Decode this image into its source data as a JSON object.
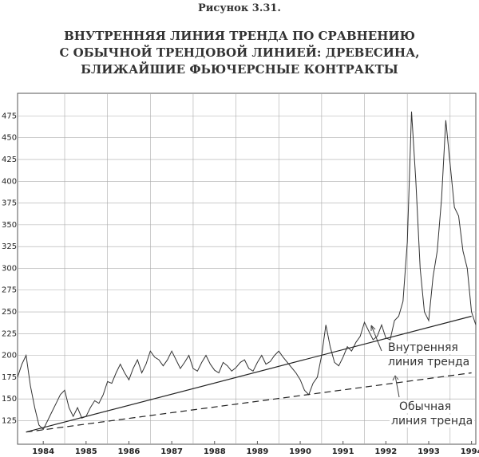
{
  "chart_data": {
    "type": "line",
    "figure_label": "Рисунок 3.31.",
    "title": [
      "ВНУТРЕННЯЯ ЛИНИЯ ТРЕНДА ПО СРАВНЕНИЮ",
      "С ОБЫЧНОЙ ТРЕНДОВОЙ ЛИНИЕЙ: ДРЕВЕСИНА,",
      "БЛИЖАЙШИЕ ФЬЮЧЕРСНЫЕ КОНТРАКТЫ"
    ],
    "x": [
      1983.9,
      1984.0,
      1984.1,
      1984.2,
      1984.3,
      1984.4,
      1984.5,
      1984.6,
      1984.7,
      1984.8,
      1984.9,
      1985.0,
      1985.1,
      1985.2,
      1985.3,
      1985.4,
      1985.5,
      1985.6,
      1985.7,
      1985.8,
      1985.9,
      1986.0,
      1986.1,
      1986.2,
      1986.3,
      1986.4,
      1986.5,
      1986.6,
      1986.7,
      1986.8,
      1986.9,
      1987.0,
      1987.1,
      1987.2,
      1987.3,
      1987.4,
      1987.5,
      1987.6,
      1987.7,
      1987.8,
      1987.9,
      1988.0,
      1988.1,
      1988.2,
      1988.3,
      1988.4,
      1988.5,
      1988.6,
      1988.7,
      1988.8,
      1988.9,
      1989.0,
      1989.1,
      1989.2,
      1989.3,
      1989.4,
      1989.5,
      1989.6,
      1989.7,
      1989.8,
      1989.9,
      1990.0,
      1990.1,
      1990.2,
      1990.3,
      1990.4,
      1990.5,
      1990.6,
      1990.7,
      1990.8,
      1990.9,
      1991.0,
      1991.1,
      1991.2,
      1991.3,
      1991.4,
      1991.5,
      1991.6,
      1991.7,
      1991.8,
      1991.9,
      1992.0,
      1992.1,
      1992.2,
      1992.3,
      1992.4,
      1992.5,
      1992.6,
      1992.7,
      1992.8,
      1992.9,
      1993.0,
      1993.1,
      1993.2,
      1993.3,
      1993.4,
      1993.5,
      1993.6,
      1993.7,
      1993.8,
      1993.9,
      1994.0,
      1994.1,
      1994.2,
      1994.3,
      1994.4,
      1994.5,
      1994.6
    ],
    "series": [
      {
        "color": "#333333",
        "values": [
          175,
          190,
          200,
          165,
          140,
          120,
          115,
          125,
          135,
          145,
          155,
          160,
          140,
          130,
          140,
          128,
          130,
          140,
          148,
          145,
          155,
          170,
          168,
          180,
          190,
          180,
          172,
          185,
          195,
          180,
          190,
          205,
          198,
          195,
          188,
          195,
          205,
          195,
          185,
          192,
          200,
          185,
          182,
          192,
          200,
          190,
          183,
          180,
          192,
          188,
          182,
          186,
          192,
          195,
          185,
          182,
          192,
          200,
          190,
          193,
          200,
          205,
          198,
          192,
          186,
          180,
          172,
          160,
          155,
          168,
          175,
          200,
          235,
          210,
          192,
          188,
          198,
          210,
          205,
          215,
          222,
          238,
          228,
          218,
          222,
          235,
          220,
          218,
          240,
          245,
          262,
          330,
          480,
          400,
          300,
          250,
          240,
          290,
          320,
          380,
          470,
          420,
          370,
          360,
          320,
          300,
          250,
          235
        ]
      }
    ],
    "trend_lines": [
      {
        "label": [
          "Внутренняя",
          "линия тренда"
        ],
        "style": "solid",
        "x": [
          1984.1,
          1994.5
        ],
        "values": [
          112,
          245
        ]
      },
      {
        "label": [
          "Обычная",
          "линия тренда"
        ],
        "style": "dashed",
        "x": [
          1984.1,
          1994.5
        ],
        "values": [
          112,
          180
        ]
      }
    ],
    "xlim": [
      1983.9,
      1994.6
    ],
    "xticks": [
      {
        "value": 1984.5,
        "label": "1984"
      },
      {
        "value": 1985.5,
        "label": "1985"
      },
      {
        "value": 1986.5,
        "label": "1986"
      },
      {
        "value": 1987.5,
        "label": "1987"
      },
      {
        "value": 1988.5,
        "label": "1988"
      },
      {
        "value": 1989.5,
        "label": "1989"
      },
      {
        "value": 1990.5,
        "label": "1990"
      },
      {
        "value": 1991.5,
        "label": "1991"
      },
      {
        "value": 1992.5,
        "label": "1992"
      },
      {
        "value": 1993.5,
        "label": "1993"
      },
      {
        "value": 1994.5,
        "label": "1994"
      }
    ],
    "ylim": [
      98,
      501
    ],
    "yticks": [
      125,
      150,
      175,
      200,
      225,
      250,
      275,
      300,
      325,
      350,
      375,
      400,
      425,
      450,
      475
    ],
    "grid": true
  }
}
